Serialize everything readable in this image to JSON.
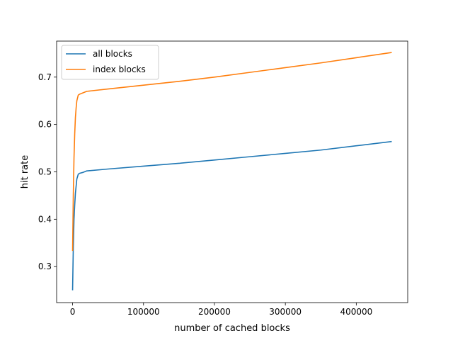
{
  "chart_data": {
    "type": "line",
    "title": "",
    "xlabel": "number of cached blocks",
    "ylabel": "hit rate",
    "xlim": [
      -22500,
      472500
    ],
    "ylim": [
      0.224,
      0.776
    ],
    "xticks": [
      0,
      100000,
      200000,
      300000,
      400000
    ],
    "xtick_labels": [
      "0",
      "100000",
      "200000",
      "300000",
      "400000"
    ],
    "yticks": [
      0.3,
      0.4,
      0.5,
      0.6,
      0.7
    ],
    "ytick_labels": [
      "0.3",
      "0.4",
      "0.5",
      "0.6",
      "0.7"
    ],
    "grid": false,
    "legend_position": "top-left",
    "series": [
      {
        "name": "all blocks",
        "color": "#1f77b4",
        "x": [
          0,
          1000,
          2000,
          3000,
          4000,
          5000,
          6000,
          8000,
          10000,
          15000,
          20000,
          50000,
          100000,
          150000,
          200000,
          250000,
          300000,
          350000,
          400000,
          450000
        ],
        "y": [
          0.25,
          0.34,
          0.4,
          0.43,
          0.455,
          0.47,
          0.485,
          0.495,
          0.497,
          0.499,
          0.502,
          0.506,
          0.512,
          0.518,
          0.525,
          0.532,
          0.539,
          0.546,
          0.555,
          0.564
        ]
      },
      {
        "name": "index blocks",
        "color": "#ff7f0e",
        "x": [
          0,
          1000,
          2000,
          3000,
          4000,
          5000,
          6000,
          8000,
          10000,
          15000,
          20000,
          50000,
          100000,
          150000,
          200000,
          250000,
          300000,
          350000,
          400000,
          450000
        ],
        "y": [
          0.333,
          0.45,
          0.53,
          0.58,
          0.615,
          0.635,
          0.65,
          0.662,
          0.664,
          0.667,
          0.67,
          0.675,
          0.683,
          0.691,
          0.7,
          0.71,
          0.72,
          0.73,
          0.741,
          0.752
        ]
      }
    ]
  }
}
